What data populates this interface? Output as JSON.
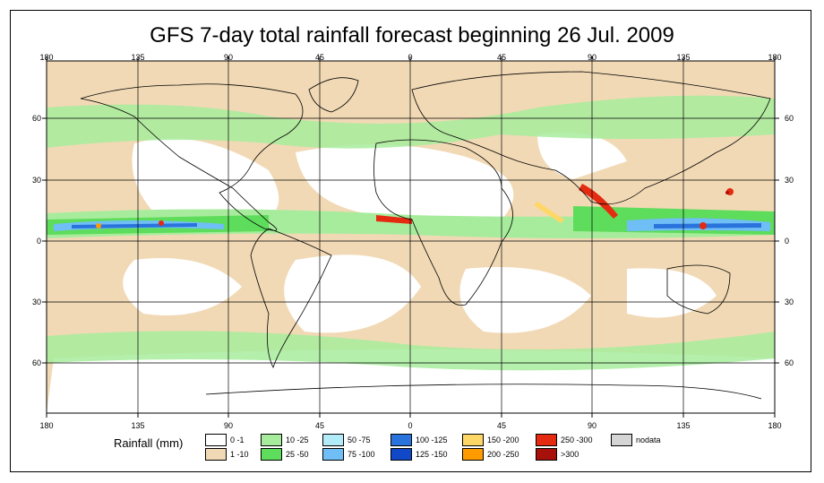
{
  "title": "GFS 7-day total rainfall forecast beginning 26 Jul. 2009",
  "axes": {
    "lon_labels": [
      "180",
      "135",
      "90",
      "45",
      "0",
      "45",
      "90",
      "135",
      "180"
    ],
    "lat_labels": [
      "60",
      "30",
      "0",
      "30",
      "60"
    ]
  },
  "legend": {
    "title": "Rainfall (mm)",
    "items": [
      {
        "label": "0 -1",
        "color": "#ffffff"
      },
      {
        "label": "1 -10",
        "color": "#f1d9b5"
      },
      {
        "label": "10 -25",
        "color": "#a7ec9c"
      },
      {
        "label": "25 -50",
        "color": "#5edc5b"
      },
      {
        "label": "50 -75",
        "color": "#b3ecf9"
      },
      {
        "label": "75 -100",
        "color": "#6fbef5"
      },
      {
        "label": "100 -125",
        "color": "#2a73dc"
      },
      {
        "label": "125 -150",
        "color": "#1048c8"
      },
      {
        "label": "150 -200",
        "color": "#ffd766"
      },
      {
        "label": "200 -250",
        "color": "#ff9a00"
      },
      {
        "label": "250 -300",
        "color": "#e42a10"
      },
      {
        "label": ">300",
        "color": "#a8100c"
      },
      {
        "label": "nodata",
        "color": "#d5d5d5"
      }
    ]
  }
}
